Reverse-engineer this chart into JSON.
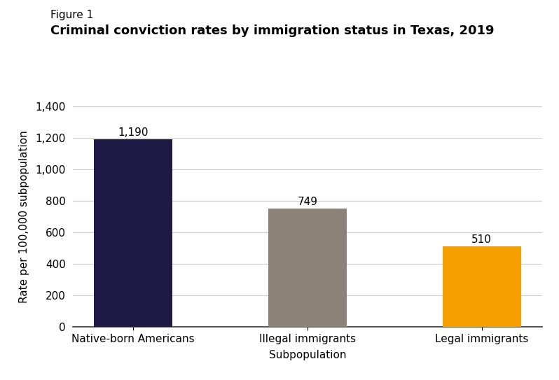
{
  "figure_label": "Figure 1",
  "title": "Criminal conviction rates by immigration status in Texas, 2019",
  "categories": [
    "Native-born Americans",
    "Illegal immigrants",
    "Legal immigrants"
  ],
  "values": [
    1190,
    749,
    510
  ],
  "bar_colors": [
    "#1e1a45",
    "#8b8378",
    "#f5a000"
  ],
  "xlabel": "Subpopulation",
  "ylabel": "Rate per 100,000 subpopulation",
  "ylim": [
    0,
    1400
  ],
  "yticks": [
    0,
    200,
    400,
    600,
    800,
    1000,
    1200,
    1400
  ],
  "value_labels": [
    "1,190",
    "749",
    "510"
  ],
  "background_color": "#ffffff",
  "grid_color": "#cccccc",
  "figure_label_fontsize": 11,
  "title_fontsize": 13,
  "label_fontsize": 11,
  "tick_fontsize": 11,
  "value_label_fontsize": 11
}
